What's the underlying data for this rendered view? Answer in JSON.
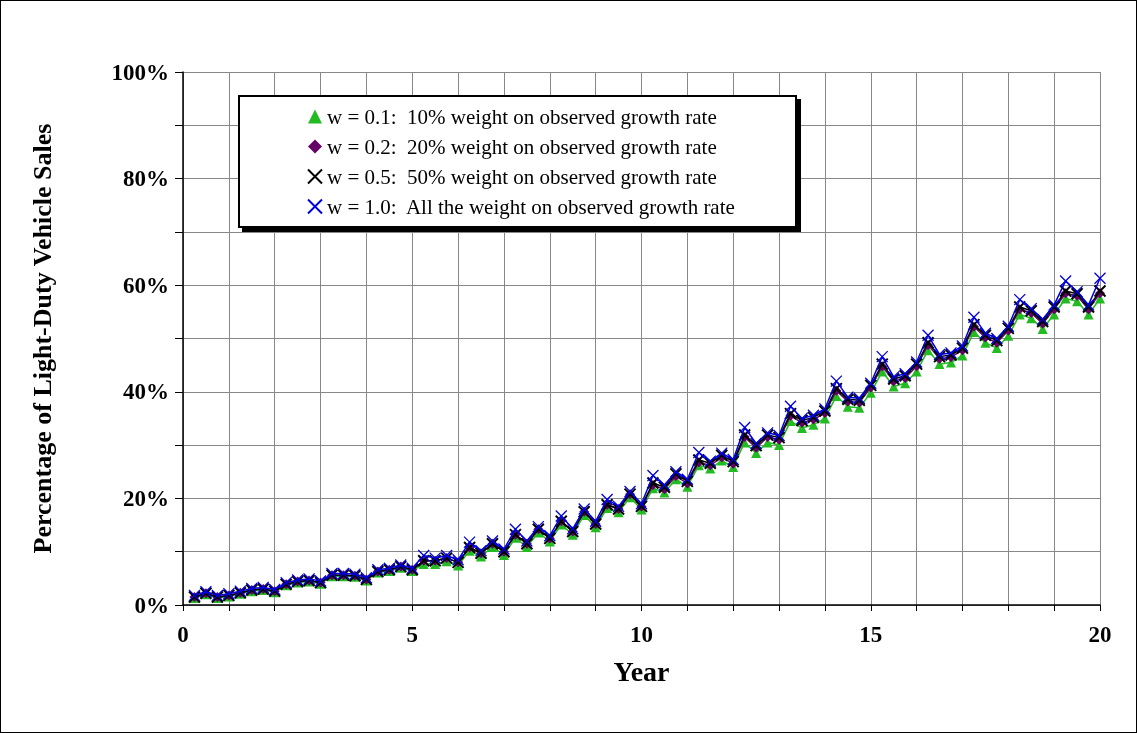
{
  "chart_data": {
    "type": "line",
    "xlabel": "Year",
    "ylabel": "Percentage of Light-Duty Vehicle Sales",
    "x": [
      0.25,
      0.5,
      0.75,
      1,
      1.25,
      1.5,
      1.75,
      2,
      2.25,
      2.5,
      2.75,
      3,
      3.25,
      3.5,
      3.75,
      4,
      4.25,
      4.5,
      4.75,
      5,
      5.25,
      5.5,
      5.75,
      6,
      6.25,
      6.5,
      6.75,
      7,
      7.25,
      7.5,
      7.75,
      8,
      8.25,
      8.5,
      8.75,
      9,
      9.25,
      9.5,
      9.75,
      10,
      10.25,
      10.5,
      10.75,
      11,
      11.25,
      11.5,
      11.75,
      12,
      12.25,
      12.5,
      12.75,
      13,
      13.25,
      13.5,
      13.75,
      14,
      14.25,
      14.5,
      14.75,
      15,
      15.25,
      15.5,
      15.75,
      16,
      16.25,
      16.5,
      16.75,
      17,
      17.25,
      17.5,
      17.75,
      18,
      18.25,
      18.5,
      18.75,
      19,
      19.25,
      19.5,
      19.75,
      20
    ],
    "series": [
      {
        "name": "w = 0.1:  10% weight on observed growth rate",
        "color": "#22bb22",
        "marker": "triangle",
        "values": [
          1.3,
          2.0,
          1.3,
          1.6,
          2.1,
          2.6,
          2.8,
          2.4,
          3.7,
          4.2,
          4.4,
          4.0,
          5.4,
          5.4,
          5.3,
          4.6,
          6.1,
          6.4,
          7.0,
          6.4,
          7.7,
          7.7,
          8.2,
          7.4,
          10.2,
          9.1,
          10.9,
          9.4,
          12.6,
          10.9,
          13.6,
          11.9,
          15.1,
          13.2,
          16.9,
          14.6,
          18.2,
          17.4,
          20.2,
          17.9,
          21.9,
          21.1,
          23.6,
          22.2,
          26.2,
          25.6,
          27.1,
          25.9,
          30.5,
          28.5,
          30.5,
          30.0,
          34.5,
          33.2,
          33.8,
          35.0,
          39.2,
          37.2,
          37.0,
          39.8,
          43.8,
          41.0,
          41.6,
          43.8,
          47.8,
          45.2,
          45.5,
          46.8,
          51.2,
          49.2,
          48.2,
          50.5,
          54.5,
          53.8,
          51.8,
          54.5,
          57.5,
          57.0,
          54.5,
          57.5
        ]
      },
      {
        "name": "w = 0.2:  20% weight on observed growth rate",
        "color": "#660066",
        "marker": "diamond",
        "values": [
          1.5,
          2.2,
          1.5,
          1.8,
          2.3,
          2.8,
          3.0,
          2.6,
          3.9,
          4.4,
          4.6,
          4.2,
          5.6,
          5.6,
          5.5,
          4.8,
          6.3,
          6.6,
          7.2,
          6.6,
          8.3,
          8.3,
          8.8,
          8.0,
          10.8,
          9.7,
          11.5,
          10.0,
          13.2,
          11.5,
          14.2,
          12.5,
          15.7,
          13.8,
          17.5,
          15.2,
          18.8,
          18.0,
          20.8,
          18.5,
          22.5,
          21.7,
          24.2,
          22.8,
          26.8,
          26.2,
          27.7,
          26.5,
          31.5,
          29.5,
          31.5,
          31.0,
          35.5,
          34.2,
          34.8,
          36.0,
          40.2,
          38.2,
          38.0,
          40.8,
          44.8,
          42.0,
          42.6,
          44.8,
          48.8,
          46.2,
          46.5,
          47.8,
          52.2,
          50.2,
          49.2,
          51.5,
          55.5,
          54.8,
          52.8,
          55.5,
          58.5,
          58.0,
          55.5,
          58.5
        ]
      },
      {
        "name": "w = 0.5:  50% weight on observed growth rate",
        "color": "#000000",
        "marker": "cross",
        "values": [
          1.5,
          2.2,
          1.5,
          1.8,
          2.3,
          2.8,
          3.0,
          2.6,
          3.9,
          4.4,
          4.6,
          4.2,
          5.6,
          5.6,
          5.5,
          4.8,
          6.3,
          6.6,
          7.2,
          6.6,
          8.3,
          8.3,
          8.8,
          8.0,
          10.8,
          9.7,
          11.5,
          10.0,
          13.2,
          11.5,
          14.2,
          12.5,
          15.7,
          13.8,
          17.5,
          15.2,
          18.8,
          18.0,
          20.8,
          18.5,
          22.9,
          22.1,
          24.6,
          23.2,
          27.2,
          26.6,
          28.1,
          26.9,
          31.9,
          29.9,
          31.9,
          31.4,
          35.9,
          34.6,
          35.2,
          36.4,
          40.6,
          38.6,
          38.4,
          41.2,
          45.2,
          42.4,
          43.0,
          45.2,
          49.2,
          46.6,
          46.9,
          48.2,
          52.6,
          50.6,
          49.6,
          51.9,
          55.9,
          55.2,
          53.2,
          55.9,
          58.9,
          58.4,
          55.9,
          58.9
        ]
      },
      {
        "name": "w = 1.0:  All the weight on observed growth rate",
        "color": "#0000dd",
        "marker": "cross",
        "values": [
          1.8,
          2.5,
          1.8,
          2.1,
          2.6,
          3.1,
          3.3,
          2.9,
          4.2,
          4.7,
          4.9,
          4.5,
          5.9,
          5.9,
          5.8,
          5.1,
          6.6,
          6.9,
          7.5,
          6.9,
          9.3,
          8.8,
          9.3,
          8.5,
          11.8,
          10.2,
          12.0,
          10.5,
          14.2,
          12.0,
          14.7,
          13.0,
          16.7,
          14.3,
          18.0,
          15.7,
          19.8,
          18.5,
          21.3,
          19.0,
          24.3,
          22.5,
          25.0,
          23.6,
          28.6,
          27.0,
          28.5,
          27.3,
          33.3,
          30.3,
          32.3,
          31.8,
          37.3,
          35.0,
          35.6,
          36.8,
          42.0,
          39.0,
          38.8,
          41.6,
          46.6,
          42.8,
          43.4,
          45.6,
          50.6,
          47.0,
          47.3,
          48.6,
          54.0,
          51.0,
          50.0,
          52.3,
          57.3,
          55.6,
          53.6,
          56.3,
          60.8,
          58.8,
          56.3,
          61.3
        ]
      }
    ],
    "xlim": [
      0,
      20
    ],
    "xticks": [
      0,
      {
        "value": 1,
        "label": null
      },
      {
        "value": 2,
        "label": null
      },
      {
        "value": 3,
        "label": null
      },
      {
        "value": 4,
        "label": null
      },
      5,
      {
        "value": 6,
        "label": null
      },
      {
        "value": 7,
        "label": null
      },
      {
        "value": 8,
        "label": null
      },
      {
        "value": 9,
        "label": null
      },
      10,
      {
        "value": 11,
        "label": null
      },
      {
        "value": 12,
        "label": null
      },
      {
        "value": 13,
        "label": null
      },
      {
        "value": 14,
        "label": null
      },
      15,
      {
        "value": 16,
        "label": null
      },
      {
        "value": 17,
        "label": null
      },
      {
        "value": 18,
        "label": null
      },
      {
        "value": 19,
        "label": null
      },
      20
    ],
    "ylim": [
      0,
      100
    ],
    "yticks": [
      {
        "value": 0,
        "label": "0%"
      },
      {
        "value": 10,
        "label": null
      },
      {
        "value": 20,
        "label": "20%"
      },
      {
        "value": 30,
        "label": null
      },
      {
        "value": 40,
        "label": "40%"
      },
      {
        "value": 50,
        "label": null
      },
      {
        "value": 60,
        "label": "60%"
      },
      {
        "value": 70,
        "label": null
      },
      {
        "value": 80,
        "label": "80%"
      },
      {
        "value": 90,
        "label": null
      },
      {
        "value": 100,
        "label": "100%"
      }
    ],
    "grid": true,
    "legend": "top left",
    "line_style": "solid"
  }
}
